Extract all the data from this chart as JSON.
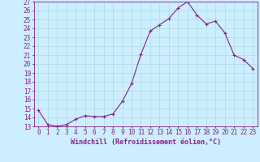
{
  "x": [
    0,
    1,
    2,
    3,
    4,
    5,
    6,
    7,
    8,
    9,
    10,
    11,
    12,
    13,
    14,
    15,
    16,
    17,
    18,
    19,
    20,
    21,
    22,
    23
  ],
  "y": [
    14.8,
    13.2,
    13.0,
    13.2,
    13.8,
    14.2,
    14.1,
    14.1,
    14.4,
    15.8,
    17.8,
    21.1,
    23.7,
    24.4,
    25.1,
    26.3,
    27.0,
    25.5,
    24.5,
    24.8,
    23.5,
    21.0,
    20.5,
    19.5
  ],
  "line_color": "#882288",
  "marker": "+",
  "marker_size": 3,
  "marker_linewidth": 0.8,
  "bg_color": "#cceeff",
  "grid_color": "#aadddd",
  "xlabel": "Windchill (Refroidissement éolien,°C)",
  "xlabel_fontsize": 6.0,
  "tick_fontsize": 5.5,
  "ylim": [
    13,
    27
  ],
  "xlim_min": -0.5,
  "xlim_max": 23.5,
  "yticks": [
    13,
    14,
    15,
    16,
    17,
    18,
    19,
    20,
    21,
    22,
    23,
    24,
    25,
    26,
    27
  ],
  "xticks": [
    0,
    1,
    2,
    3,
    4,
    5,
    6,
    7,
    8,
    9,
    10,
    11,
    12,
    13,
    14,
    15,
    16,
    17,
    18,
    19,
    20,
    21,
    22,
    23
  ],
  "linewidth": 0.8
}
